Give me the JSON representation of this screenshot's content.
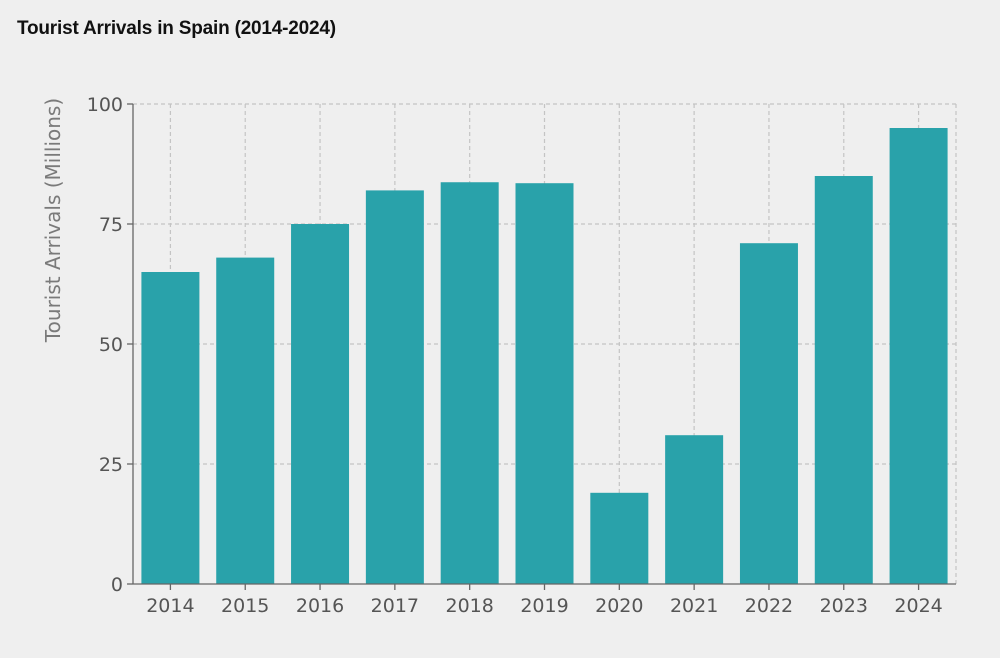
{
  "chart_data": {
    "type": "bar",
    "title": "Tourist Arrivals in Spain (2014-2024)",
    "xlabel": "",
    "ylabel": "Tourist Arrivals (Millions)",
    "categories": [
      "2014",
      "2015",
      "2016",
      "2017",
      "2018",
      "2019",
      "2020",
      "2021",
      "2022",
      "2023",
      "2024"
    ],
    "values": [
      65,
      68,
      75,
      82,
      83.7,
      83.5,
      19,
      31,
      71,
      85,
      95
    ],
    "ylim": [
      0,
      100
    ],
    "yticks": [
      "0",
      "25",
      "50",
      "75",
      "100"
    ],
    "grid": true,
    "legend": "none",
    "colors": {
      "bar": "#29a2aa",
      "grid": "#c4c4c4",
      "axis": "#666666",
      "background": "#efefef"
    }
  }
}
